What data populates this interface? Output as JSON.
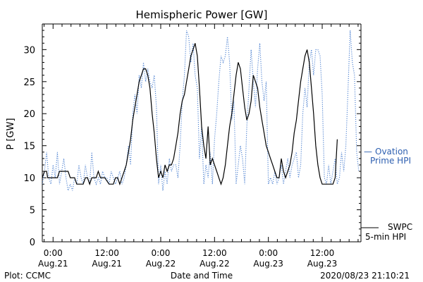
{
  "chart_data": {
    "type": "line",
    "title": "Hemispheric Power [GW]",
    "xlabel": "Date and Time",
    "ylabel": "P [GW]",
    "ylim": [
      0,
      34
    ],
    "xlim": [
      -0.1,
      2.86
    ],
    "x_unit": "days since 2020-08-21 00:00 UT",
    "y_ticks": [
      0,
      5,
      10,
      15,
      20,
      25,
      30
    ],
    "x_ticks": [
      {
        "x": 0.0,
        "time": "0:00",
        "date": "Aug.21"
      },
      {
        "x": 0.5,
        "time": "12:00",
        "date": "Aug.21"
      },
      {
        "x": 1.0,
        "time": "0:00",
        "date": "Aug.22"
      },
      {
        "x": 1.5,
        "time": "12:00",
        "date": "Aug.22"
      },
      {
        "x": 2.0,
        "time": "0:00",
        "date": "Aug.23"
      },
      {
        "x": 2.5,
        "time": "12:00",
        "date": "Aug.23"
      }
    ],
    "grid": false,
    "series": [
      {
        "name": "Ovation Prime HPI",
        "style": "dotted",
        "color": "#4a7fd0",
        "points": [
          [
            -0.1,
            9
          ],
          [
            -0.08,
            11
          ],
          [
            -0.06,
            14
          ],
          [
            -0.04,
            10
          ],
          [
            -0.02,
            9
          ],
          [
            0.0,
            12
          ],
          [
            0.02,
            10
          ],
          [
            0.04,
            14
          ],
          [
            0.06,
            9
          ],
          [
            0.08,
            11
          ],
          [
            0.1,
            13
          ],
          [
            0.12,
            10
          ],
          [
            0.14,
            8
          ],
          [
            0.16,
            9
          ],
          [
            0.18,
            8
          ],
          [
            0.2,
            10
          ],
          [
            0.22,
            9
          ],
          [
            0.24,
            12
          ],
          [
            0.26,
            10
          ],
          [
            0.28,
            9
          ],
          [
            0.3,
            12
          ],
          [
            0.32,
            10
          ],
          [
            0.34,
            9
          ],
          [
            0.36,
            14
          ],
          [
            0.38,
            10
          ],
          [
            0.4,
            9
          ],
          [
            0.42,
            10
          ],
          [
            0.44,
            9
          ],
          [
            0.46,
            11
          ],
          [
            0.48,
            10
          ],
          [
            0.5,
            10
          ],
          [
            0.52,
            9
          ],
          [
            0.54,
            11
          ],
          [
            0.56,
            10
          ],
          [
            0.58,
            9
          ],
          [
            0.6,
            10
          ],
          [
            0.62,
            11
          ],
          [
            0.64,
            9
          ],
          [
            0.66,
            10
          ],
          [
            0.68,
            12
          ],
          [
            0.7,
            15
          ],
          [
            0.72,
            12
          ],
          [
            0.74,
            20
          ],
          [
            0.76,
            23
          ],
          [
            0.78,
            20
          ],
          [
            0.8,
            26
          ],
          [
            0.82,
            24
          ],
          [
            0.84,
            28
          ],
          [
            0.86,
            25
          ],
          [
            0.88,
            27
          ],
          [
            0.9,
            25
          ],
          [
            0.92,
            24
          ],
          [
            0.94,
            26
          ],
          [
            0.96,
            21
          ],
          [
            0.98,
            9
          ],
          [
            1.0,
            12
          ],
          [
            1.02,
            8
          ],
          [
            1.04,
            11
          ],
          [
            1.06,
            9
          ],
          [
            1.08,
            13
          ],
          [
            1.1,
            11
          ],
          [
            1.12,
            12
          ],
          [
            1.14,
            12
          ],
          [
            1.16,
            10
          ],
          [
            1.18,
            15
          ],
          [
            1.2,
            22
          ],
          [
            1.22,
            26
          ],
          [
            1.24,
            33
          ],
          [
            1.26,
            32
          ],
          [
            1.28,
            28
          ],
          [
            1.3,
            31
          ],
          [
            1.32,
            26
          ],
          [
            1.34,
            24
          ],
          [
            1.36,
            13
          ],
          [
            1.38,
            18
          ],
          [
            1.4,
            9
          ],
          [
            1.42,
            12
          ],
          [
            1.44,
            10
          ],
          [
            1.46,
            14
          ],
          [
            1.48,
            9
          ],
          [
            1.5,
            16
          ],
          [
            1.52,
            20
          ],
          [
            1.54,
            25
          ],
          [
            1.56,
            29
          ],
          [
            1.58,
            28
          ],
          [
            1.6,
            29
          ],
          [
            1.62,
            32
          ],
          [
            1.64,
            28
          ],
          [
            1.66,
            19
          ],
          [
            1.68,
            22
          ],
          [
            1.7,
            9
          ],
          [
            1.72,
            12
          ],
          [
            1.74,
            15
          ],
          [
            1.76,
            13
          ],
          [
            1.78,
            9
          ],
          [
            1.8,
            18
          ],
          [
            1.82,
            24
          ],
          [
            1.84,
            30
          ],
          [
            1.86,
            25
          ],
          [
            1.88,
            21
          ],
          [
            1.9,
            27
          ],
          [
            1.92,
            31
          ],
          [
            1.94,
            25
          ],
          [
            1.96,
            22
          ],
          [
            1.98,
            25
          ],
          [
            2.0,
            9
          ],
          [
            2.02,
            10
          ],
          [
            2.04,
            9
          ],
          [
            2.06,
            11
          ],
          [
            2.08,
            9
          ],
          [
            2.1,
            10
          ],
          [
            2.12,
            12
          ],
          [
            2.14,
            9
          ],
          [
            2.16,
            11
          ],
          [
            2.18,
            13
          ],
          [
            2.2,
            10
          ],
          [
            2.22,
            12
          ],
          [
            2.24,
            13
          ],
          [
            2.26,
            14
          ],
          [
            2.28,
            10
          ],
          [
            2.3,
            12
          ],
          [
            2.32,
            20
          ],
          [
            2.34,
            24
          ],
          [
            2.36,
            21
          ],
          [
            2.38,
            28
          ],
          [
            2.4,
            30
          ],
          [
            2.42,
            26
          ],
          [
            2.44,
            30
          ],
          [
            2.46,
            30
          ],
          [
            2.48,
            29
          ],
          [
            2.5,
            23
          ],
          [
            2.52,
            10
          ],
          [
            2.54,
            9
          ],
          [
            2.56,
            12
          ],
          [
            2.58,
            9
          ],
          [
            2.6,
            11
          ],
          [
            2.62,
            13
          ],
          [
            2.64,
            9
          ],
          [
            2.66,
            10
          ],
          [
            2.68,
            14
          ],
          [
            2.7,
            11
          ],
          [
            2.72,
            15
          ],
          [
            2.74,
            24
          ],
          [
            2.76,
            33
          ],
          [
            2.78,
            28
          ],
          [
            2.8,
            26
          ],
          [
            2.82,
            14
          ],
          [
            2.84,
            11
          ]
        ]
      },
      {
        "name": "SWPC 5-min HPI",
        "style": "solid",
        "color": "#000000",
        "points": [
          [
            -0.1,
            10
          ],
          [
            -0.08,
            11
          ],
          [
            -0.06,
            11
          ],
          [
            -0.05,
            10
          ],
          [
            0.04,
            10
          ],
          [
            0.06,
            11
          ],
          [
            0.08,
            11
          ],
          [
            0.14,
            11
          ],
          [
            0.16,
            10
          ],
          [
            0.2,
            10
          ],
          [
            0.22,
            9
          ],
          [
            0.28,
            9
          ],
          [
            0.3,
            10
          ],
          [
            0.32,
            10
          ],
          [
            0.34,
            9
          ],
          [
            0.36,
            10
          ],
          [
            0.4,
            10
          ],
          [
            0.42,
            11
          ],
          [
            0.44,
            10
          ],
          [
            0.48,
            10
          ],
          [
            0.52,
            9
          ],
          [
            0.56,
            9
          ],
          [
            0.58,
            10
          ],
          [
            0.6,
            10
          ],
          [
            0.62,
            9
          ],
          [
            0.64,
            10
          ],
          [
            0.66,
            11
          ],
          [
            0.68,
            12
          ],
          [
            0.7,
            14
          ],
          [
            0.72,
            16
          ],
          [
            0.74,
            19
          ],
          [
            0.76,
            21
          ],
          [
            0.78,
            23
          ],
          [
            0.8,
            25
          ],
          [
            0.82,
            26
          ],
          [
            0.84,
            27
          ],
          [
            0.86,
            27
          ],
          [
            0.88,
            26
          ],
          [
            0.9,
            24
          ],
          [
            0.92,
            20
          ],
          [
            0.94,
            17
          ],
          [
            0.96,
            13
          ],
          [
            0.98,
            10
          ],
          [
            1.0,
            11
          ],
          [
            1.02,
            10
          ],
          [
            1.04,
            12
          ],
          [
            1.06,
            11
          ],
          [
            1.08,
            12
          ],
          [
            1.1,
            12
          ],
          [
            1.12,
            13
          ],
          [
            1.14,
            15
          ],
          [
            1.16,
            17
          ],
          [
            1.18,
            20
          ],
          [
            1.2,
            22
          ],
          [
            1.22,
            23
          ],
          [
            1.24,
            25
          ],
          [
            1.26,
            27
          ],
          [
            1.28,
            29
          ],
          [
            1.3,
            30
          ],
          [
            1.32,
            31
          ],
          [
            1.34,
            29
          ],
          [
            1.36,
            24
          ],
          [
            1.38,
            18
          ],
          [
            1.4,
            15
          ],
          [
            1.42,
            13
          ],
          [
            1.44,
            18
          ],
          [
            1.46,
            12
          ],
          [
            1.48,
            13
          ],
          [
            1.5,
            12
          ],
          [
            1.52,
            11
          ],
          [
            1.54,
            10
          ],
          [
            1.56,
            9
          ],
          [
            1.58,
            10
          ],
          [
            1.6,
            12
          ],
          [
            1.62,
            15
          ],
          [
            1.64,
            18
          ],
          [
            1.66,
            20
          ],
          [
            1.68,
            23
          ],
          [
            1.7,
            26
          ],
          [
            1.72,
            28
          ],
          [
            1.74,
            27
          ],
          [
            1.76,
            24
          ],
          [
            1.78,
            21
          ],
          [
            1.8,
            19
          ],
          [
            1.82,
            20
          ],
          [
            1.84,
            22
          ],
          [
            1.86,
            26
          ],
          [
            1.88,
            25
          ],
          [
            1.9,
            24
          ],
          [
            1.92,
            21
          ],
          [
            1.94,
            19
          ],
          [
            1.96,
            17
          ],
          [
            1.98,
            15
          ],
          [
            2.0,
            14
          ],
          [
            2.02,
            13
          ],
          [
            2.04,
            12
          ],
          [
            2.06,
            11
          ],
          [
            2.08,
            10
          ],
          [
            2.1,
            10
          ],
          [
            2.12,
            13
          ],
          [
            2.14,
            11
          ],
          [
            2.16,
            10
          ],
          [
            2.18,
            11
          ],
          [
            2.2,
            12
          ],
          [
            2.22,
            14
          ],
          [
            2.24,
            17
          ],
          [
            2.26,
            19
          ],
          [
            2.28,
            22
          ],
          [
            2.3,
            25
          ],
          [
            2.32,
            27
          ],
          [
            2.34,
            29
          ],
          [
            2.36,
            30
          ],
          [
            2.38,
            28
          ],
          [
            2.4,
            24
          ],
          [
            2.42,
            20
          ],
          [
            2.44,
            15
          ],
          [
            2.46,
            12
          ],
          [
            2.48,
            10
          ],
          [
            2.5,
            9
          ],
          [
            2.52,
            9
          ],
          [
            2.54,
            9
          ],
          [
            2.56,
            9
          ],
          [
            2.58,
            9
          ],
          [
            2.6,
            9
          ],
          [
            2.62,
            10
          ],
          [
            2.64,
            16
          ]
        ]
      }
    ],
    "legend": {
      "entries": [
        {
          "marker": "—",
          "lines": [
            "Ovation",
            "Prime HPI"
          ],
          "color": "#2d5fb0"
        },
        {
          "lines": [
            "SWPC",
            "5-min HPI"
          ],
          "color": "#000000"
        }
      ]
    },
    "footer": {
      "left": "Plot: CCMC",
      "right": "2020/08/23 21:10:21"
    }
  }
}
